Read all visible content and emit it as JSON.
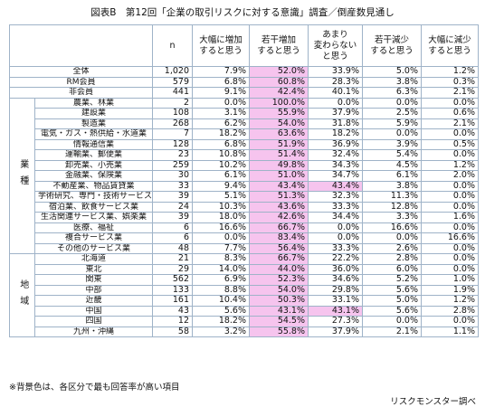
{
  "title": "図表B　第12回「企業の取引リスクに対する意識」調査／倒産数見通し",
  "table": {
    "columns": [
      "n",
      "大幅に増加\nすると思う",
      "若干増加\nすると思う",
      "あまり\n変わらない\nと思う",
      "若干減少\nすると思う",
      "大幅に減少\nすると思う"
    ],
    "rows": [
      [
        "全体",
        "1,020",
        "7.9%",
        "52.0%",
        "33.9%",
        "5.0%",
        "1.2%"
      ],
      [
        "RM会員",
        "579",
        "6.8%",
        "60.8%",
        "28.3%",
        "3.8%",
        "0.3%"
      ],
      [
        "非会員",
        "441",
        "9.1%",
        "42.4%",
        "40.1%",
        "6.3%",
        "2.1%"
      ]
    ],
    "groups": [
      {
        "label": "業種",
        "rows": [
          [
            "農業、林業",
            "2",
            "0.0%",
            "100.0%",
            "0.0%",
            "0.0%",
            "0.0%"
          ],
          [
            "建設業",
            "108",
            "3.1%",
            "55.9%",
            "37.9%",
            "2.5%",
            "0.6%"
          ],
          [
            "製造業",
            "268",
            "6.2%",
            "54.0%",
            "31.8%",
            "5.9%",
            "2.1%"
          ],
          [
            "電気・ガス・熱供給・水道業",
            "7",
            "18.2%",
            "63.6%",
            "18.2%",
            "0.0%",
            "0.0%"
          ],
          [
            "情報通信業",
            "128",
            "6.8%",
            "51.9%",
            "36.9%",
            "3.9%",
            "0.5%"
          ],
          [
            "運輸業、郵便業",
            "23",
            "10.8%",
            "51.4%",
            "32.4%",
            "5.4%",
            "0.0%"
          ],
          [
            "卸売業、小売業",
            "259",
            "10.2%",
            "49.8%",
            "34.3%",
            "4.5%",
            "1.2%"
          ],
          [
            "金融業、保険業",
            "30",
            "6.1%",
            "51.0%",
            "34.7%",
            "6.1%",
            "2.0%"
          ],
          [
            "不動産業、物品賃貸業",
            "33",
            "9.4%",
            "43.4%",
            "43.4%",
            "3.8%",
            "0.0%"
          ],
          [
            "学術研究、専門・技術サービス業",
            "39",
            "5.1%",
            "51.3%",
            "32.3%",
            "11.3%",
            "0.0%"
          ],
          [
            "宿泊業、飲食サービス業",
            "24",
            "10.3%",
            "43.6%",
            "33.3%",
            "12.8%",
            "0.0%"
          ],
          [
            "生活関連サービス業、娯楽業",
            "39",
            "18.0%",
            "42.6%",
            "34.4%",
            "3.3%",
            "1.6%"
          ],
          [
            "医療、福祉",
            "6",
            "16.6%",
            "66.7%",
            "0.0%",
            "16.6%",
            "0.0%"
          ],
          [
            "複合サービス業",
            "6",
            "0.0%",
            "83.4%",
            "0.0%",
            "0.0%",
            "16.6%"
          ],
          [
            "その他のサービス業",
            "48",
            "7.7%",
            "56.4%",
            "33.3%",
            "2.6%",
            "0.0%"
          ]
        ]
      },
      {
        "label": "地域",
        "rows": [
          [
            "北海道",
            "21",
            "8.3%",
            "66.7%",
            "22.2%",
            "2.8%",
            "0.0%"
          ],
          [
            "東北",
            "29",
            "14.0%",
            "44.0%",
            "36.0%",
            "6.0%",
            "0.0%"
          ],
          [
            "関東",
            "562",
            "6.9%",
            "52.3%",
            "34.6%",
            "5.2%",
            "1.0%"
          ],
          [
            "中部",
            "133",
            "8.8%",
            "54.0%",
            "29.8%",
            "5.6%",
            "1.9%"
          ],
          [
            "近畿",
            "161",
            "10.4%",
            "50.3%",
            "33.1%",
            "5.0%",
            "1.2%"
          ],
          [
            "中国",
            "43",
            "5.6%",
            "43.1%",
            "43.1%",
            "5.6%",
            "2.8%"
          ],
          [
            "四国",
            "12",
            "18.2%",
            "54.5%",
            "27.3%",
            "0.0%",
            "0.0%"
          ],
          [
            "九州・沖縄",
            "58",
            "3.2%",
            "55.8%",
            "37.9%",
            "2.1%",
            "1.1%"
          ]
        ]
      }
    ],
    "highlight_color": "#f6c4ee"
  },
  "footnote": "※背景色は、各区分で最も回答率が高い項目",
  "source": "リスクモンスター調べ"
}
